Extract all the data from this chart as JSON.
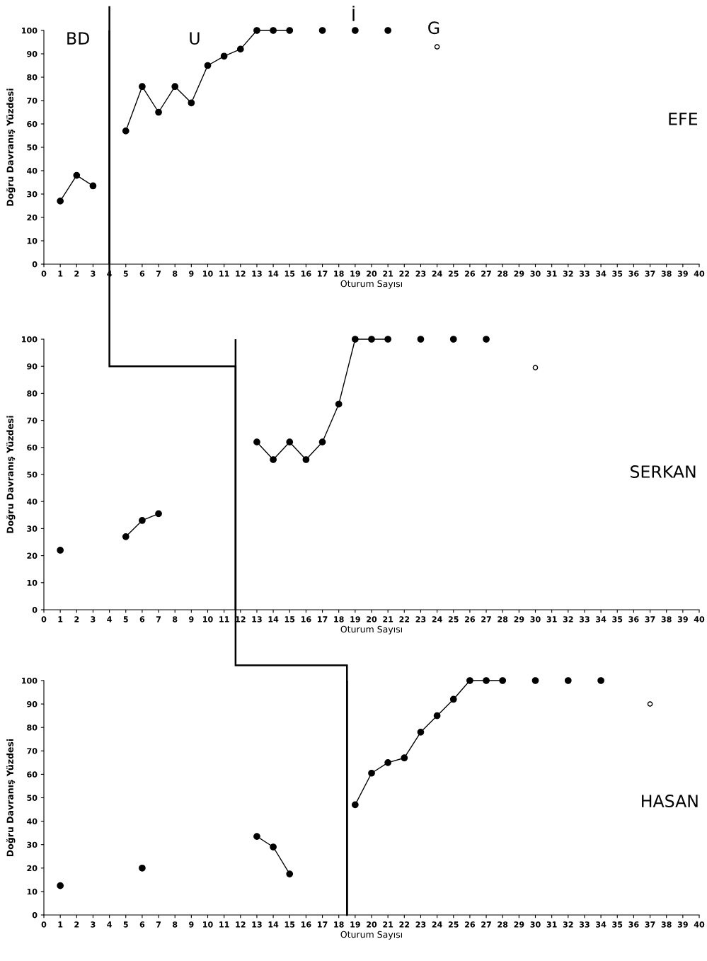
{
  "chart_data": [
    {
      "type": "line",
      "xlabel": "Oturum Sayısı",
      "ylabel": "Doğru Davranış Yüzdesi",
      "xlim": [
        0,
        40
      ],
      "xticks": [
        0,
        1,
        2,
        3,
        4,
        5,
        6,
        7,
        8,
        9,
        10,
        11,
        12,
        13,
        14,
        15,
        16,
        17,
        18,
        19,
        20,
        21,
        22,
        23,
        24,
        25,
        26,
        27,
        28,
        29,
        30,
        31,
        32,
        33,
        34,
        35,
        36,
        37,
        38,
        39,
        40
      ],
      "ylim": [
        0,
        100
      ],
      "yticks": [
        0,
        10,
        20,
        30,
        40,
        50,
        60,
        70,
        80,
        90,
        100
      ],
      "marker": "circle",
      "line_style": "solid",
      "series": [
        {
          "color": "#000000",
          "x": [
            1,
            2,
            3
          ],
          "values": [
            27,
            38,
            33.5
          ]
        },
        {
          "color": "#000000",
          "x": [
            5,
            6,
            7,
            8,
            9,
            10,
            11,
            12,
            13,
            14,
            15
          ],
          "values": [
            57,
            76,
            65,
            76,
            69,
            85,
            89,
            92,
            100,
            100,
            100
          ]
        },
        {
          "type": "scatter",
          "color": "#000000",
          "x": [
            17,
            19,
            21
          ],
          "values": [
            100,
            100,
            100
          ]
        },
        {
          "type": "scatter",
          "color": "#ffffff",
          "x": [
            24
          ],
          "values": [
            93
          ]
        }
      ],
      "ref_lines": [
        {
          "axis": "x",
          "value": 4,
          "color": "#000000"
        }
      ],
      "annotations": [
        "BD",
        "U",
        "İ",
        "G",
        "EFE"
      ]
    },
    {
      "type": "line",
      "xlabel": "Oturum Sayısı",
      "ylabel": "Doğru Davranış Yüzdesi",
      "xlim": [
        0,
        40
      ],
      "xticks": [
        0,
        1,
        2,
        3,
        4,
        5,
        6,
        7,
        8,
        9,
        10,
        11,
        12,
        13,
        14,
        15,
        16,
        17,
        18,
        19,
        20,
        21,
        22,
        23,
        24,
        25,
        26,
        27,
        28,
        29,
        30,
        31,
        32,
        33,
        34,
        35,
        36,
        37,
        38,
        39,
        40
      ],
      "ylim": [
        0,
        100
      ],
      "yticks": [
        0,
        10,
        20,
        30,
        40,
        50,
        60,
        70,
        80,
        90,
        100
      ],
      "marker": "circle",
      "line_style": "solid",
      "series": [
        {
          "type": "scatter",
          "color": "#000000",
          "x": [
            1
          ],
          "values": [
            22
          ]
        },
        {
          "color": "#000000",
          "x": [
            5,
            6,
            7
          ],
          "values": [
            27,
            33,
            35.5
          ]
        },
        {
          "color": "#000000",
          "x": [
            13,
            14,
            15,
            16,
            17,
            18,
            19,
            20,
            21
          ],
          "values": [
            62,
            55.5,
            62,
            55.5,
            62,
            76,
            100,
            100,
            100
          ]
        },
        {
          "type": "scatter",
          "color": "#000000",
          "x": [
            23,
            25,
            27
          ],
          "values": [
            100,
            100,
            100
          ]
        },
        {
          "type": "scatter",
          "color": "#ffffff",
          "x": [
            30
          ],
          "values": [
            89.5
          ]
        }
      ],
      "ref_lines": [
        {
          "axis": "x",
          "value": 11.7,
          "color": "#000000"
        }
      ],
      "annotations": [
        "SERKAN"
      ]
    },
    {
      "type": "line",
      "xlabel": "Oturum Sayısı",
      "ylabel": "Doğru Davranış Yüzdesi",
      "xlim": [
        0,
        40
      ],
      "xticks": [
        0,
        1,
        2,
        3,
        4,
        5,
        6,
        7,
        8,
        9,
        10,
        11,
        12,
        13,
        14,
        15,
        16,
        17,
        18,
        19,
        20,
        21,
        22,
        23,
        24,
        25,
        26,
        27,
        28,
        29,
        30,
        31,
        32,
        33,
        34,
        35,
        36,
        37,
        38,
        39,
        40
      ],
      "ylim": [
        0,
        100
      ],
      "yticks": [
        0,
        10,
        20,
        30,
        40,
        50,
        60,
        70,
        80,
        90,
        100
      ],
      "marker": "circle",
      "line_style": "solid",
      "series": [
        {
          "type": "scatter",
          "color": "#000000",
          "x": [
            1
          ],
          "values": [
            12.5
          ]
        },
        {
          "type": "scatter",
          "color": "#000000",
          "x": [
            6
          ],
          "values": [
            20
          ]
        },
        {
          "color": "#000000",
          "x": [
            13,
            14,
            15
          ],
          "values": [
            33.5,
            29,
            17.5
          ]
        },
        {
          "color": "#000000",
          "x": [
            19,
            20,
            21,
            22,
            23,
            24,
            25,
            26,
            27,
            28
          ],
          "values": [
            47,
            60.5,
            65,
            67,
            78,
            85,
            92,
            100,
            100,
            100
          ]
        },
        {
          "type": "scatter",
          "color": "#000000",
          "x": [
            30,
            32,
            34
          ],
          "values": [
            100,
            100,
            100
          ]
        },
        {
          "type": "scatter",
          "color": "#ffffff",
          "x": [
            37
          ],
          "values": [
            90
          ]
        }
      ],
      "ref_lines": [
        {
          "axis": "x",
          "value": 18.5,
          "color": "#000000"
        }
      ],
      "annotations": [
        "HASAN"
      ]
    }
  ]
}
